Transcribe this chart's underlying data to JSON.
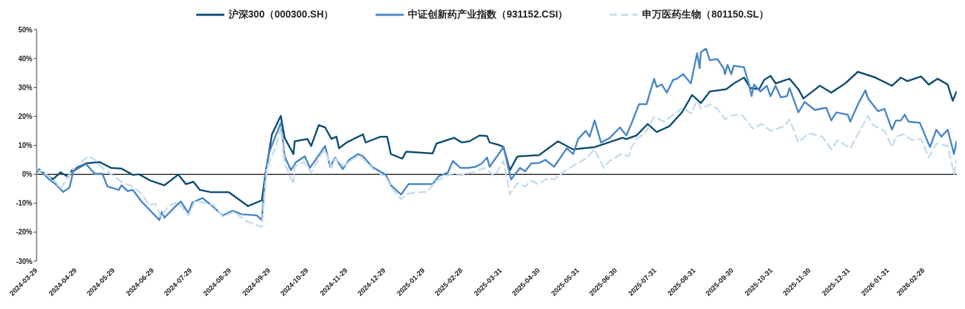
{
  "chart_data": {
    "type": "line",
    "legend": "top",
    "marker": "none",
    "xlim": [
      "2024-03-29",
      "2026-03-26"
    ],
    "xticks": [
      "2024-03-29",
      "2024-04-29",
      "2024-05-29",
      "2024-06-29",
      "2024-07-29",
      "2024-08-29",
      "2024-09-29",
      "2024-10-29",
      "2024-11-29",
      "2024-12-29",
      "2025-01-29",
      "2025-02-28",
      "2025-03-31",
      "2025-04-30",
      "2025-05-31",
      "2025-06-30",
      "2025-07-31",
      "2025-08-31",
      "2025-09-30",
      "2025-10-31",
      "2025-11-30",
      "2025-12-31",
      "2026-01-31",
      "2026-02-28"
    ],
    "ylim": [
      -30,
      50
    ],
    "yticks": [
      {
        "value": -30,
        "label": "-30%"
      },
      {
        "value": -20,
        "label": "-20%"
      },
      {
        "value": -10,
        "label": "-10%"
      },
      {
        "value": 0,
        "label": "0%"
      },
      {
        "value": 10,
        "label": "10%"
      },
      {
        "value": 20,
        "label": "20%"
      },
      {
        "value": 30,
        "label": "30%"
      },
      {
        "value": 40,
        "label": "40%"
      },
      {
        "value": 50,
        "label": "50%"
      }
    ],
    "ref_lines": [
      {
        "axis": "y",
        "value": 0,
        "color": "#000000"
      }
    ],
    "series": [
      {
        "name": "沪深300（000300.SH）",
        "color": "#0e4d72",
        "line_style": "solid",
        "x": [
          "2024-03-29",
          "2024-03-31",
          "2024-04-11",
          "2024-04-17",
          "2024-04-23",
          "2024-04-26",
          "2024-05-07",
          "2024-05-18",
          "2024-05-27",
          "2024-06-04",
          "2024-06-13",
          "2024-06-18",
          "2024-06-27",
          "2024-07-08",
          "2024-07-19",
          "2024-07-25",
          "2024-07-31",
          "2024-08-05",
          "2024-08-14",
          "2024-08-28",
          "2024-09-12",
          "2024-09-23",
          "2024-09-26",
          "2024-10-01",
          "2024-10-08",
          "2024-10-11",
          "2024-10-18",
          "2024-10-19",
          "2024-10-29",
          "2024-11-01",
          "2024-11-07",
          "2024-11-12",
          "2024-11-17",
          "2024-11-21",
          "2024-11-23",
          "2024-11-29",
          "2024-12-12",
          "2024-12-14",
          "2024-12-26",
          "2024-12-31",
          "2025-01-03",
          "2025-01-12",
          "2025-01-15",
          "2025-02-05",
          "2025-02-08",
          "2025-02-22",
          "2025-02-28",
          "2025-03-06",
          "2025-03-14",
          "2025-03-20",
          "2025-03-22",
          "2025-03-29",
          "2025-04-02",
          "2025-04-07",
          "2025-04-13",
          "2025-04-30",
          "2025-05-15",
          "2025-05-27",
          "2025-06-13",
          "2025-06-24",
          "2025-07-05",
          "2025-07-08",
          "2025-07-16",
          "2025-07-25",
          "2025-08-01",
          "2025-08-11",
          "2025-08-21",
          "2025-08-29",
          "2025-09-05",
          "2025-09-12",
          "2025-09-25",
          "2025-10-01",
          "2025-10-09",
          "2025-10-14",
          "2025-10-21",
          "2025-10-25",
          "2025-10-30",
          "2025-11-03",
          "2025-11-14",
          "2025-11-21",
          "2025-11-25",
          "2025-12-08",
          "2025-12-17",
          "2025-12-28",
          "2026-01-07",
          "2026-01-21",
          "2026-02-03",
          "2026-02-10",
          "2026-02-15",
          "2026-02-26",
          "2026-03-04",
          "2026-03-11",
          "2026-03-19",
          "2026-03-23",
          "2026-03-26"
        ],
        "values": [
          0,
          1.4,
          -1.7,
          0.7,
          -0.9,
          1.4,
          3.8,
          4.2,
          2.2,
          2.0,
          -0.2,
          0,
          -2.2,
          -3.8,
          -0.1,
          -3.4,
          -2.6,
          -5.4,
          -6.2,
          -6.2,
          -11,
          -9,
          0.6,
          13.8,
          20.2,
          12.6,
          7,
          11.4,
          12.2,
          9.8,
          17,
          16.2,
          12.2,
          13,
          9,
          11,
          13.8,
          11,
          13,
          13,
          7,
          5.4,
          7.8,
          7.2,
          10.6,
          12.6,
          11,
          11.4,
          13.4,
          13.2,
          11,
          10.2,
          9.4,
          1.4,
          6.2,
          6.6,
          11.4,
          8.6,
          9.4,
          11,
          12.6,
          12.2,
          13.4,
          17.4,
          14.6,
          16.6,
          21.4,
          27.4,
          24.6,
          28.6,
          29.4,
          31.4,
          33.4,
          29.8,
          29.4,
          32.6,
          34,
          31.4,
          33,
          29.4,
          26.2,
          30.6,
          28.2,
          31.4,
          35.4,
          33.4,
          30.6,
          33.4,
          32.2,
          33.8,
          31,
          33,
          31,
          25.4,
          28.6
        ]
      },
      {
        "name": "中证创新药产业指数（931152.CSI）",
        "color": "#4a86c5",
        "line_style": "solid",
        "x": [
          "2024-03-29",
          "2024-03-31",
          "2024-04-08",
          "2024-04-13",
          "2024-04-19",
          "2024-04-24",
          "2024-04-27",
          "2024-05-07",
          "2024-05-14",
          "2024-05-20",
          "2024-05-24",
          "2024-06-02",
          "2024-06-04",
          "2024-06-09",
          "2024-06-13",
          "2024-06-20",
          "2024-06-27",
          "2024-07-04",
          "2024-07-06",
          "2024-07-08",
          "2024-07-16",
          "2024-07-21",
          "2024-07-27",
          "2024-07-30",
          "2024-08-07",
          "2024-08-14",
          "2024-08-23",
          "2024-08-31",
          "2024-09-07",
          "2024-09-19",
          "2024-09-23",
          "2024-09-26",
          "2024-09-29",
          "2024-10-08",
          "2024-10-11",
          "2024-10-16",
          "2024-10-20",
          "2024-10-27",
          "2024-10-31",
          "2024-11-07",
          "2024-11-12",
          "2024-11-16",
          "2024-11-20",
          "2024-11-26",
          "2024-12-01",
          "2024-12-08",
          "2024-12-12",
          "2024-12-19",
          "2024-12-30",
          "2025-01-03",
          "2025-01-11",
          "2025-01-17",
          "2025-01-23",
          "2025-02-05",
          "2025-02-10",
          "2025-02-17",
          "2025-02-21",
          "2025-02-27",
          "2025-03-05",
          "2025-03-11",
          "2025-03-16",
          "2025-03-20",
          "2025-03-22",
          "2025-04-02",
          "2025-04-08",
          "2025-04-15",
          "2025-04-19",
          "2025-04-24",
          "2025-04-30",
          "2025-05-05",
          "2025-05-12",
          "2025-05-22",
          "2025-05-27",
          "2025-05-31",
          "2025-06-06",
          "2025-06-09",
          "2025-06-13",
          "2025-06-18",
          "2025-06-25",
          "2025-07-03",
          "2025-07-08",
          "2025-07-12",
          "2025-07-18",
          "2025-07-24",
          "2025-07-30",
          "2025-08-01",
          "2025-08-05",
          "2025-08-09",
          "2025-08-14",
          "2025-08-17",
          "2025-08-22",
          "2025-08-28",
          "2025-09-02",
          "2025-09-04",
          "2025-09-05",
          "2025-09-09",
          "2025-09-12",
          "2025-09-18",
          "2025-09-23",
          "2025-09-24",
          "2025-09-26",
          "2025-09-29",
          "2025-10-01",
          "2025-10-09",
          "2025-10-13",
          "2025-10-15",
          "2025-10-17",
          "2025-10-22",
          "2025-10-27",
          "2025-10-30",
          "2025-11-03",
          "2025-11-07",
          "2025-11-12",
          "2025-11-14",
          "2025-11-21",
          "2025-11-26",
          "2025-12-04",
          "2025-12-13",
          "2025-12-17",
          "2025-12-21",
          "2025-12-30",
          "2026-01-01",
          "2026-01-08",
          "2026-01-13",
          "2026-01-15",
          "2026-01-23",
          "2026-01-28",
          "2026-02-03",
          "2026-02-06",
          "2026-02-10",
          "2026-02-13",
          "2026-02-16",
          "2026-02-25",
          "2026-03-05",
          "2026-03-10",
          "2026-03-14",
          "2026-03-19",
          "2026-03-24",
          "2026-03-26"
        ],
        "values": [
          0,
          1.8,
          -1.8,
          -3.4,
          -6.1,
          -4.6,
          1,
          3.6,
          0.2,
          0.2,
          -4.2,
          -5.4,
          -3.8,
          -5.8,
          -5.4,
          -9.4,
          -12.6,
          -15.8,
          -13,
          -15,
          -11.4,
          -9.4,
          -13.4,
          -9.8,
          -8.2,
          -10.6,
          -14.2,
          -12.6,
          -13.8,
          -14.2,
          -15.8,
          0.6,
          7.8,
          17.8,
          6.2,
          1.4,
          4.2,
          6.2,
          2.2,
          6.6,
          9.8,
          2.6,
          5.8,
          1.8,
          5,
          7,
          6.2,
          2.6,
          -0.2,
          -3.8,
          -7,
          -3.4,
          -3.4,
          -3.4,
          -0.6,
          0.6,
          4.6,
          2.2,
          2.2,
          2.6,
          3.8,
          5.8,
          2.6,
          9.4,
          -1.8,
          2.2,
          1,
          3.8,
          3.9,
          5,
          2.6,
          9,
          7,
          12.2,
          15,
          13,
          18.6,
          11,
          12.6,
          16.2,
          13.4,
          17.4,
          24.2,
          24.2,
          33,
          30.2,
          31,
          28.2,
          32.6,
          33,
          34.6,
          31.4,
          41.8,
          36.6,
          42.2,
          43.4,
          39.4,
          39.8,
          36.6,
          34.6,
          37.8,
          34.6,
          37.5,
          37,
          31,
          27,
          31,
          28.6,
          30.6,
          27,
          30.6,
          26.6,
          27,
          29.8,
          21.4,
          25,
          22.2,
          23,
          18.6,
          21.4,
          20.6,
          18.2,
          25,
          29,
          26.2,
          21.8,
          22.6,
          15.4,
          18.6,
          18.6,
          20.6,
          18.2,
          17.8,
          9.4,
          15.4,
          13,
          15.4,
          7,
          11.4
        ]
      },
      {
        "name": "申万医药生物（801150.SL）",
        "color": "#c6dcf0",
        "line_style": "dashed",
        "x": [
          "2024-03-29",
          "2024-04-01",
          "2024-04-13",
          "2024-04-17",
          "2024-04-26",
          "2024-05-09",
          "2024-05-14",
          "2024-05-20",
          "2024-05-29",
          "2024-06-05",
          "2024-06-11",
          "2024-06-20",
          "2024-06-26",
          "2024-07-01",
          "2024-07-05",
          "2024-07-08",
          "2024-07-12",
          "2024-07-19",
          "2024-07-27",
          "2024-08-01",
          "2024-08-09",
          "2024-08-16",
          "2024-08-23",
          "2024-09-01",
          "2024-09-11",
          "2024-09-18",
          "2024-09-23",
          "2024-09-27",
          "2024-10-04",
          "2024-10-08",
          "2024-10-11",
          "2024-10-18",
          "2024-10-19",
          "2024-10-26",
          "2024-11-01",
          "2024-11-09",
          "2024-11-12",
          "2024-11-17",
          "2024-11-20",
          "2024-11-27",
          "2024-12-06",
          "2024-12-10",
          "2024-12-20",
          "2024-12-30",
          "2025-01-04",
          "2025-01-11",
          "2025-01-17",
          "2025-02-01",
          "2025-02-07",
          "2025-02-17",
          "2025-02-28",
          "2025-03-11",
          "2025-03-18",
          "2025-03-26",
          "2025-04-02",
          "2025-04-07",
          "2025-04-13",
          "2025-04-19",
          "2025-04-24",
          "2025-04-29",
          "2025-05-07",
          "2025-05-12",
          "2025-05-20",
          "2025-05-29",
          "2025-06-06",
          "2025-06-13",
          "2025-06-20",
          "2025-06-25",
          "2025-07-04",
          "2025-07-10",
          "2025-07-12",
          "2025-07-17",
          "2025-07-23",
          "2025-07-30",
          "2025-08-07",
          "2025-08-14",
          "2025-08-22",
          "2025-08-28",
          "2025-09-02",
          "2025-09-05",
          "2025-09-12",
          "2025-09-18",
          "2025-09-24",
          "2025-10-01",
          "2025-10-08",
          "2025-10-16",
          "2025-10-23",
          "2025-10-30",
          "2025-11-10",
          "2025-11-14",
          "2025-11-21",
          "2025-11-29",
          "2025-12-10",
          "2025-12-17",
          "2025-12-22",
          "2026-01-01",
          "2026-01-10",
          "2026-01-15",
          "2026-01-19",
          "2026-01-28",
          "2026-02-03",
          "2026-02-06",
          "2026-02-12",
          "2026-02-19",
          "2026-02-26",
          "2026-03-04",
          "2026-03-10",
          "2026-03-19",
          "2026-03-24",
          "2026-03-26"
        ],
        "values": [
          0,
          1.4,
          -2.6,
          -5,
          1.4,
          6.3,
          5,
          2.2,
          -0.6,
          -3,
          -3.8,
          -6.6,
          -10.6,
          -10.2,
          -14.6,
          -13,
          -10.6,
          -9.8,
          -14.2,
          -9.4,
          -9.8,
          -10.6,
          -14.6,
          -13,
          -16.2,
          -17.4,
          -18.2,
          2.2,
          9.4,
          16.2,
          3.8,
          -3.4,
          2.6,
          4.2,
          0.6,
          7,
          8.2,
          2.2,
          5.4,
          3,
          5.8,
          6.2,
          1.8,
          -1,
          -5,
          -8.6,
          -6.6,
          -6,
          -2.6,
          -0.2,
          -0.2,
          1,
          2.2,
          -0.6,
          4.6,
          -7,
          -3,
          -4.2,
          -2.2,
          -3.4,
          -1.4,
          -1.8,
          1,
          3.4,
          5.4,
          8.6,
          2.2,
          4.6,
          7,
          6.2,
          9.4,
          12.6,
          14.2,
          19.8,
          18.2,
          20.6,
          23,
          21,
          25.4,
          22.6,
          24.2,
          22.6,
          19,
          20.6,
          20.2,
          15.8,
          17.4,
          15,
          16.6,
          19,
          11,
          14.2,
          13,
          8.6,
          11.8,
          9,
          16.2,
          20.2,
          17,
          15,
          9.4,
          13,
          13.8,
          11.8,
          12.2,
          5.8,
          10.6,
          9.8,
          0.2,
          5
        ]
      }
    ]
  }
}
